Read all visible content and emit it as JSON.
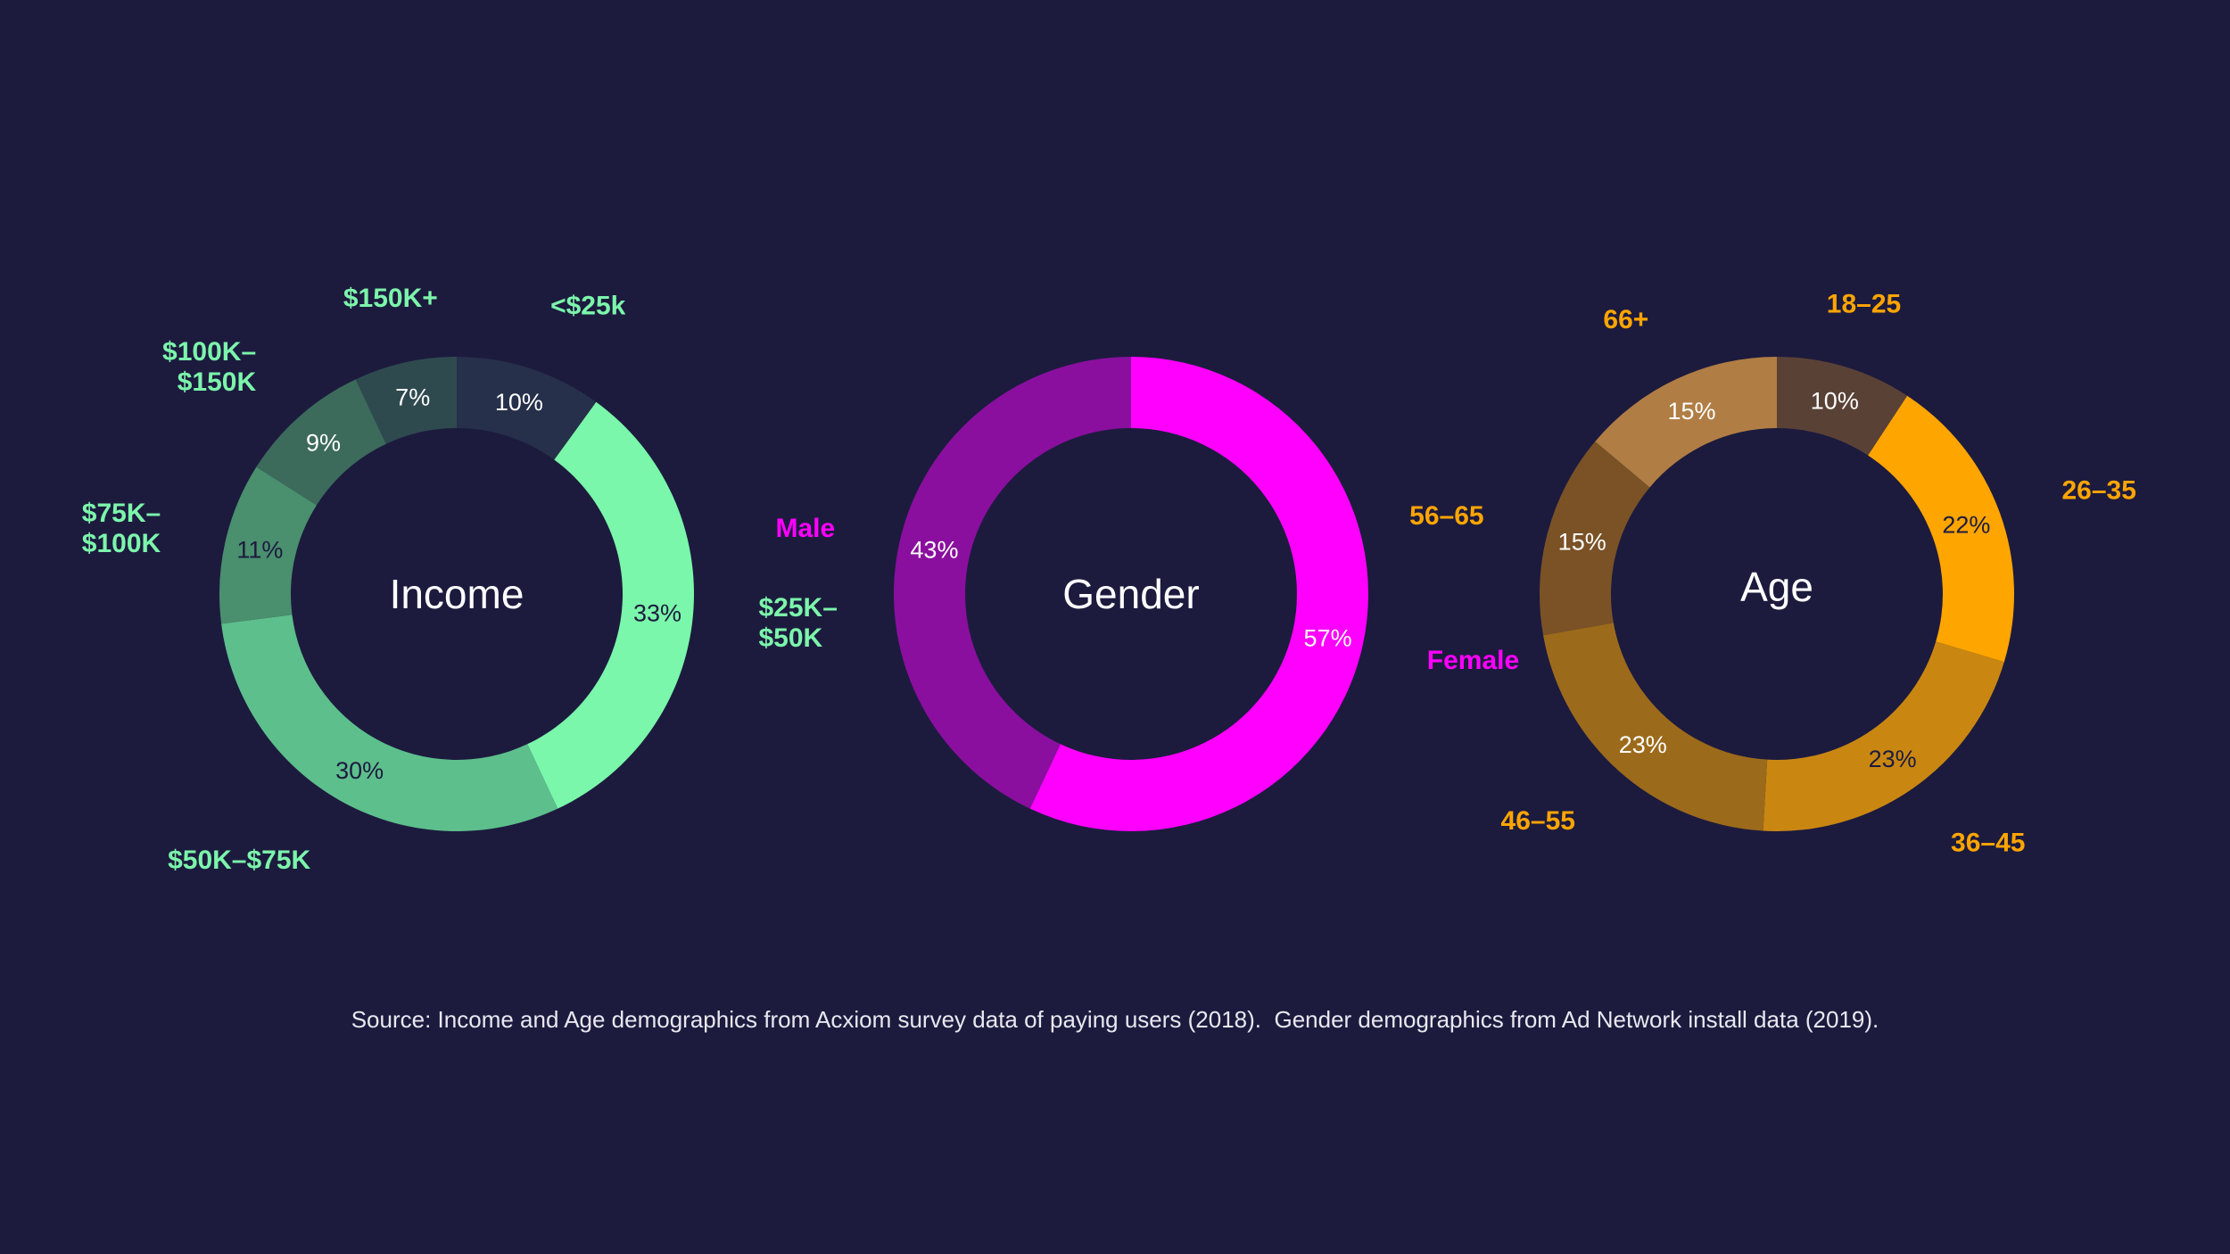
{
  "colors": {
    "background": "#1c1b3e",
    "center_text": "#ffffff",
    "source_text": "#e8e8f0"
  },
  "chart_data": [
    {
      "type": "pie",
      "donut": true,
      "title": "Income",
      "label_color": "#7cf5ab",
      "categories": [
        "<$25k",
        "$25K–\n$50K",
        "$50K–$75K",
        "$75K–\n$100K",
        "$100K–\n$150K",
        "$150K+"
      ],
      "values": [
        10,
        33,
        30,
        11,
        9,
        7
      ],
      "value_labels": [
        "10%",
        "33%",
        "30%",
        "11%",
        "9%",
        "7%"
      ],
      "colors": [
        "#26304a",
        "#7af7aa",
        "#5dbf8c",
        "#4a8f6e",
        "#3c6a5b",
        "#2f4a4f"
      ],
      "value_label_colors": [
        "#ffffff",
        "#1c1b3e",
        "#1c1b3e",
        "#1c1b3e",
        "#ffffff",
        "#ffffff"
      ]
    },
    {
      "type": "pie",
      "donut": true,
      "title": "Gender",
      "label_color": "#ff00ff",
      "categories": [
        "Female",
        "Male"
      ],
      "values": [
        57,
        43
      ],
      "value_labels": [
        "57%",
        "43%"
      ],
      "colors": [
        "#ff00ff",
        "#8a0f9e"
      ],
      "value_label_colors": [
        "#ffffff",
        "#ffffff"
      ]
    },
    {
      "type": "pie",
      "donut": true,
      "title": "Age",
      "label_color": "#ffa500",
      "categories": [
        "18–25",
        "26–35",
        "36–45",
        "46–55",
        "56–65",
        "66+"
      ],
      "values": [
        10,
        22,
        23,
        23,
        15,
        15
      ],
      "value_labels": [
        "10%",
        "22%",
        "23%",
        "23%",
        "15%",
        "15%"
      ],
      "colors": [
        "#5a4136",
        "#ffa500",
        "#c98712",
        "#9c6a1b",
        "#7a5226",
        "#b07d44"
      ],
      "value_label_colors": [
        "#ffffff",
        "#1c1b3e",
        "#1c1b3e",
        "#ffffff",
        "#ffffff",
        "#ffffff"
      ]
    }
  ],
  "source": "Source: Income and Age demographics from Acxiom survey data of paying users (2018).  Gender demographics from Ad Network install data (2019)."
}
